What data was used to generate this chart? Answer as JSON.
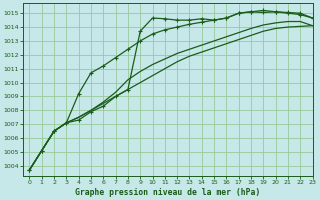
{
  "title": "Graphe pression niveau de la mer (hPa)",
  "background_color": "#c6e8e8",
  "grid_color": "#98c898",
  "line_color": "#1a5c1a",
  "xlim": [
    -0.5,
    23
  ],
  "ylim": [
    1003.3,
    1015.7
  ],
  "yticks": [
    1004,
    1005,
    1006,
    1007,
    1008,
    1009,
    1010,
    1011,
    1012,
    1013,
    1014,
    1015
  ],
  "xticks": [
    0,
    1,
    2,
    3,
    4,
    5,
    6,
    7,
    8,
    9,
    10,
    11,
    12,
    13,
    14,
    15,
    16,
    17,
    18,
    19,
    20,
    21,
    22,
    23
  ],
  "series1_x": [
    0,
    1,
    2,
    3,
    4,
    5,
    6,
    7,
    8,
    9,
    10,
    11,
    12,
    13,
    14,
    15,
    16,
    17,
    18,
    19,
    20,
    21,
    22,
    23
  ],
  "series1": [
    1003.7,
    1005.1,
    1006.5,
    1007.1,
    1007.3,
    1007.9,
    1008.3,
    1009.0,
    1009.5,
    1013.7,
    1014.65,
    1014.6,
    1014.5,
    1014.5,
    1014.6,
    1014.5,
    1014.65,
    1015.0,
    1015.1,
    1015.05,
    1015.1,
    1015.0,
    1014.9,
    1014.65
  ],
  "series2_x": [
    0,
    1,
    2,
    3,
    4,
    5,
    6,
    7,
    8,
    9,
    10,
    11,
    12,
    13,
    14,
    15,
    16,
    17,
    18,
    19,
    20,
    21,
    22,
    23
  ],
  "series2": [
    1003.7,
    1005.1,
    1006.5,
    1007.1,
    1009.2,
    1010.7,
    1011.2,
    1011.8,
    1012.4,
    1013.0,
    1013.5,
    1013.8,
    1014.0,
    1014.2,
    1014.35,
    1014.5,
    1014.65,
    1015.0,
    1015.1,
    1015.2,
    1015.1,
    1015.05,
    1015.0,
    1014.65
  ],
  "series3_x": [
    0,
    1,
    2,
    3,
    4,
    5,
    6,
    7,
    8,
    9,
    10,
    11,
    12,
    13,
    14,
    15,
    16,
    17,
    18,
    19,
    20,
    21,
    22,
    23
  ],
  "series3": [
    1003.7,
    1005.1,
    1006.5,
    1007.1,
    1007.5,
    1008.0,
    1008.5,
    1009.0,
    1009.5,
    1010.0,
    1010.5,
    1011.0,
    1011.5,
    1011.9,
    1012.2,
    1012.5,
    1012.8,
    1013.1,
    1013.4,
    1013.7,
    1013.9,
    1014.0,
    1014.05,
    1014.1
  ],
  "series4_x": [
    0,
    1,
    2,
    3,
    4,
    5,
    6,
    7,
    8,
    9,
    10,
    11,
    12,
    13,
    14,
    15,
    16,
    17,
    18,
    19,
    20,
    21,
    22,
    23
  ],
  "series4": [
    1003.7,
    1005.1,
    1006.5,
    1007.1,
    1007.5,
    1008.0,
    1008.6,
    1009.3,
    1010.2,
    1010.8,
    1011.3,
    1011.7,
    1012.1,
    1012.4,
    1012.7,
    1013.0,
    1013.3,
    1013.6,
    1013.9,
    1014.15,
    1014.3,
    1014.4,
    1014.4,
    1014.1
  ]
}
